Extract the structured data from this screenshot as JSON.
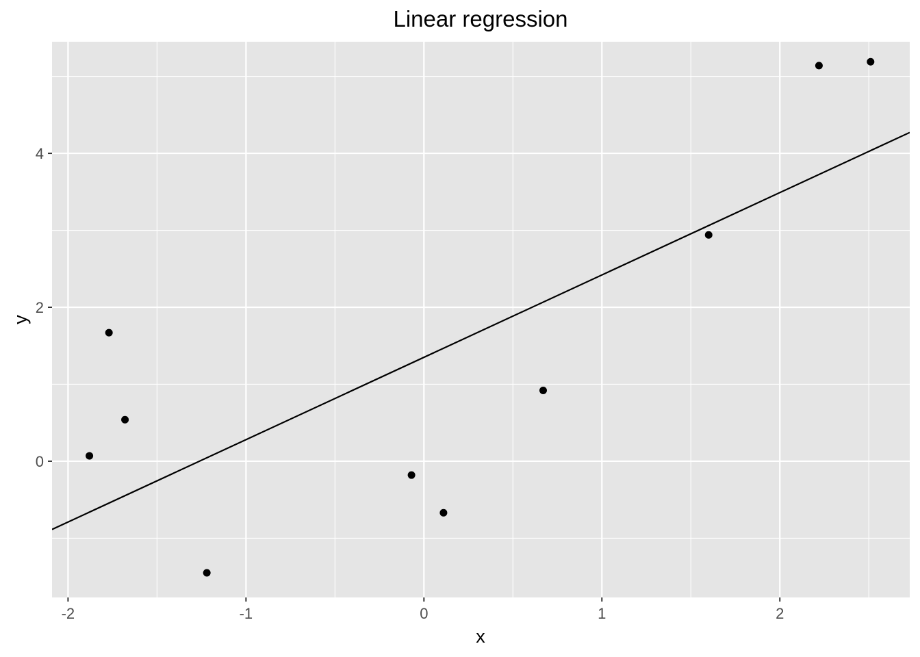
{
  "chart_data": {
    "type": "scatter",
    "title": "Linear regression",
    "xlabel": "x",
    "ylabel": "y",
    "xlim": [
      -2.09,
      2.73
    ],
    "ylim": [
      -1.77,
      5.45
    ],
    "x_ticks": [
      -2,
      -1,
      0,
      1,
      2
    ],
    "y_ticks": [
      0,
      2,
      4
    ],
    "x_minor_ticks": [
      -1.5,
      -0.5,
      0.5,
      1.5,
      2.5
    ],
    "y_minor_ticks": [
      -1,
      1,
      3,
      5
    ],
    "grid": true,
    "panel_color": "#e5e5e5",
    "grid_color": "#ffffff",
    "point_color": "#000000",
    "line_color": "#000000",
    "points": [
      {
        "x": -1.88,
        "y": 0.07
      },
      {
        "x": -1.77,
        "y": 1.67
      },
      {
        "x": -1.68,
        "y": 0.54
      },
      {
        "x": -1.22,
        "y": -1.45
      },
      {
        "x": -0.07,
        "y": -0.18
      },
      {
        "x": 0.11,
        "y": -0.67
      },
      {
        "x": 0.67,
        "y": 0.92
      },
      {
        "x": 1.6,
        "y": 2.94
      },
      {
        "x": 2.22,
        "y": 5.14
      },
      {
        "x": 2.51,
        "y": 5.19
      }
    ],
    "regression_line": {
      "slope": 1.07,
      "intercept": 1.35
    }
  }
}
